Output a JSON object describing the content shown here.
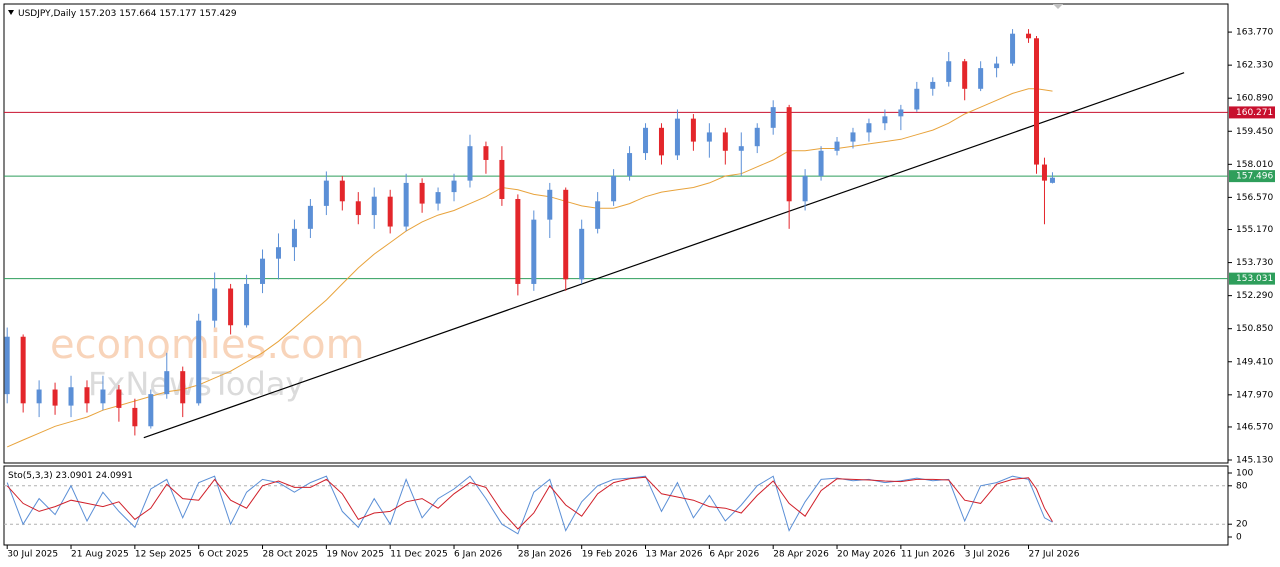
{
  "chart_data": {
    "type": "candlestick",
    "symbol": "USDJPY,Daily",
    "watermarks": [
      "economies.com",
      "FxNewsToday"
    ],
    "up_color": "#5b8fd6",
    "down_color": "#e3262b",
    "x": [
      0,
      1,
      2,
      3,
      4,
      5,
      6,
      7,
      8,
      9,
      10,
      11,
      12,
      13,
      14,
      15,
      16,
      17,
      18,
      19,
      20,
      21,
      22,
      23,
      24,
      25,
      26,
      27,
      28,
      29,
      30,
      31,
      32,
      33,
      34,
      35,
      36,
      37,
      38,
      39,
      40,
      41,
      42,
      43,
      44,
      45,
      46,
      47,
      48,
      49,
      50,
      51,
      52,
      53,
      54,
      55,
      56,
      57,
      58,
      59,
      60,
      61,
      62,
      63,
      64,
      64.5,
      65,
      65.5
    ],
    "open": [
      148.0,
      150.5,
      147.6,
      148.2,
      147.5,
      148.3,
      147.6,
      148.2,
      147.4,
      146.6,
      148.0,
      149.0,
      147.6,
      151.2,
      152.6,
      151.0,
      152.8,
      153.9,
      154.4,
      155.2,
      156.2,
      157.3,
      156.4,
      155.8,
      156.6,
      155.3,
      157.2,
      156.3,
      156.8,
      157.3,
      158.8,
      158.2,
      156.5,
      152.8,
      155.6,
      156.9,
      153.0,
      155.2,
      156.4,
      157.5,
      158.5,
      159.6,
      158.4,
      160.0,
      159.0,
      159.4,
      158.6,
      158.8,
      159.6,
      160.5,
      156.4,
      157.5,
      158.6,
      159.0,
      159.4,
      159.8,
      160.1,
      160.4,
      161.3,
      161.6,
      162.5,
      161.3,
      162.2,
      162.4,
      163.7,
      163.5,
      158.0,
      157.203
    ],
    "high": [
      150.9,
      150.6,
      148.6,
      148.5,
      148.8,
      148.6,
      148.8,
      148.4,
      147.8,
      148.2,
      149.8,
      149.2,
      151.5,
      153.3,
      152.8,
      153.2,
      154.3,
      155.0,
      155.6,
      156.5,
      157.7,
      157.5,
      156.8,
      157.0,
      156.9,
      157.6,
      157.4,
      157.0,
      157.6,
      159.3,
      159.0,
      158.8,
      156.7,
      156.0,
      157.2,
      157.0,
      155.6,
      156.8,
      157.8,
      158.8,
      159.8,
      159.8,
      160.4,
      160.2,
      159.8,
      159.6,
      159.4,
      159.8,
      160.8,
      160.6,
      157.8,
      158.8,
      159.2,
      159.6,
      160.0,
      160.4,
      160.6,
      161.6,
      161.8,
      162.9,
      162.6,
      162.5,
      162.7,
      163.9,
      163.9,
      163.6,
      158.3,
      157.664
    ],
    "low": [
      147.6,
      147.2,
      147.0,
      147.1,
      147.0,
      147.2,
      147.3,
      146.8,
      146.2,
      146.5,
      147.8,
      147.0,
      147.5,
      150.9,
      150.6,
      150.9,
      152.4,
      153.0,
      153.8,
      154.8,
      155.8,
      156.0,
      155.4,
      155.2,
      155.0,
      155.1,
      155.9,
      156.0,
      156.4,
      157.0,
      157.6,
      156.2,
      152.3,
      152.5,
      154.8,
      152.5,
      152.8,
      155.0,
      156.2,
      157.3,
      158.2,
      158.0,
      158.2,
      158.6,
      158.3,
      158.0,
      157.5,
      158.5,
      159.3,
      155.2,
      156.0,
      157.3,
      158.4,
      158.7,
      159.0,
      159.5,
      159.5,
      160.3,
      161.0,
      161.4,
      160.8,
      161.2,
      161.8,
      162.3,
      163.3,
      157.6,
      155.4,
      157.177
    ],
    "close": [
      150.5,
      147.6,
      148.2,
      147.5,
      148.3,
      147.6,
      148.2,
      147.4,
      146.6,
      148.0,
      149.0,
      147.6,
      151.2,
      152.6,
      151.0,
      152.8,
      153.9,
      154.4,
      155.2,
      156.2,
      157.3,
      156.4,
      155.8,
      156.6,
      155.3,
      157.2,
      156.3,
      156.8,
      157.3,
      158.8,
      158.2,
      156.5,
      152.8,
      155.6,
      156.9,
      153.0,
      155.2,
      156.4,
      157.5,
      158.5,
      159.6,
      158.4,
      160.0,
      159.0,
      159.4,
      158.6,
      158.8,
      159.6,
      160.5,
      156.4,
      157.5,
      158.6,
      159.0,
      159.4,
      159.8,
      160.1,
      160.4,
      161.3,
      161.6,
      162.5,
      161.3,
      162.2,
      162.4,
      163.7,
      163.5,
      158.0,
      157.3,
      157.429
    ],
    "ma": {
      "color": "#e8a33c",
      "values": [
        145.7,
        146.0,
        146.3,
        146.6,
        146.8,
        147.0,
        147.3,
        147.5,
        147.7,
        147.9,
        148.1,
        148.2,
        148.4,
        148.7,
        149.0,
        149.4,
        149.8,
        150.3,
        150.9,
        151.5,
        152.1,
        152.8,
        153.5,
        154.1,
        154.6,
        155.1,
        155.5,
        155.8,
        156.0,
        156.3,
        156.6,
        157.0,
        156.9,
        156.7,
        156.6,
        156.4,
        156.2,
        156.1,
        156.1,
        156.3,
        156.6,
        156.8,
        156.9,
        157.0,
        157.2,
        157.5,
        157.6,
        157.9,
        158.2,
        158.6,
        158.6,
        158.7,
        158.7,
        158.8,
        158.9,
        159.0,
        159.1,
        159.3,
        159.5,
        159.8,
        160.2,
        160.5,
        160.8,
        161.1,
        161.3,
        161.3,
        161.25,
        161.2
      ]
    },
    "trendline": {
      "color": "#000000",
      "x": [
        8.56,
        73.75
      ],
      "values": [
        146.1,
        162.0
      ]
    },
    "levels": [
      {
        "value": 160.271,
        "color": "#c8102e"
      },
      {
        "value": 157.496,
        "color": "#2e9e5b"
      },
      {
        "value": 153.031,
        "color": "#2e9e5b"
      }
    ],
    "xlim": [
      -0.2,
      76.5
    ],
    "ylim": [
      145.0,
      164.95
    ],
    "yticks": [
      {
        "value": 145.13,
        "label": "145.130"
      },
      {
        "value": 146.57,
        "label": "146.570"
      },
      {
        "value": 147.97,
        "label": "147.970"
      },
      {
        "value": 149.41,
        "label": "149.410"
      },
      {
        "value": 150.85,
        "label": "150.850"
      },
      {
        "value": 152.29,
        "label": "152.290"
      },
      {
        "value": 153.73,
        "label": "153.730"
      },
      {
        "value": 155.17,
        "label": "155.170"
      },
      {
        "value": 156.57,
        "label": "156.570"
      },
      {
        "value": 158.01,
        "label": "158.010"
      },
      {
        "value": 159.45,
        "label": "159.450"
      },
      {
        "value": 160.89,
        "label": "160.890"
      },
      {
        "value": 162.33,
        "label": "162.330"
      },
      {
        "value": 163.77,
        "label": "163.770"
      }
    ],
    "xticks": [
      {
        "value": 0,
        "label": "30 Jul 2025"
      },
      {
        "value": 4,
        "label": "21 Aug 2025"
      },
      {
        "value": 8,
        "label": "12 Sep 2025"
      },
      {
        "value": 12,
        "label": "6 Oct 2025"
      },
      {
        "value": 16,
        "label": "28 Oct 2025"
      },
      {
        "value": 20,
        "label": "19 Nov 2025"
      },
      {
        "value": 24,
        "label": "11 Dec 2025"
      },
      {
        "value": 28,
        "label": "6 Jan 2026"
      },
      {
        "value": 32,
        "label": "28 Jan 2026"
      },
      {
        "value": 36,
        "label": "19 Feb 2026"
      },
      {
        "value": 40,
        "label": "13 Mar 2026"
      },
      {
        "value": 44,
        "label": "6 Apr 2026"
      },
      {
        "value": 48,
        "label": "28 Apr 2026"
      },
      {
        "value": 52,
        "label": "20 May 2026"
      },
      {
        "value": 56,
        "label": "11 Jun 2026"
      },
      {
        "value": 60,
        "label": "3 Jul 2026"
      },
      {
        "value": 64,
        "label": "27 Jul 2026"
      }
    ],
    "oscillator": {
      "label": "Sto(5,3,3)",
      "ylim": [
        0,
        100
      ],
      "yticks": [
        100,
        80,
        20,
        0
      ],
      "series": [
        {
          "color": "#5b8fd6",
          "values": [
            85,
            20,
            60,
            35,
            80,
            25,
            70,
            40,
            15,
            75,
            90,
            30,
            85,
            95,
            20,
            70,
            90,
            85,
            70,
            85,
            95,
            40,
            15,
            60,
            20,
            90,
            30,
            60,
            75,
            95,
            60,
            20,
            5,
            70,
            90,
            10,
            55,
            80,
            90,
            92,
            95,
            40,
            85,
            30,
            65,
            25,
            50,
            80,
            95,
            10,
            55,
            90,
            92,
            88,
            90,
            85,
            88,
            92,
            88,
            90,
            25,
            80,
            85,
            95,
            90,
            60,
            30,
            23.0901
          ]
        },
        {
          "color": "#d0202a",
          "values": [
            80,
            52.5,
            40,
            47.5,
            57.5,
            52.5,
            47.5,
            55,
            27.5,
            45,
            82.5,
            60,
            57.5,
            90,
            57.5,
            45,
            80,
            87.5,
            77.5,
            77.5,
            90,
            67.5,
            27.5,
            37.5,
            40,
            55,
            60,
            45,
            67.5,
            85,
            77.5,
            40,
            12.5,
            37.5,
            80,
            50,
            32.5,
            67.5,
            85,
            91,
            93.5,
            67.5,
            62.5,
            57.5,
            47.5,
            45,
            37.5,
            65,
            87.5,
            52.5,
            32.5,
            72.5,
            91,
            90,
            89,
            87.5,
            86.5,
            90,
            90,
            89,
            57.5,
            52.5,
            82.5,
            90,
            92.5,
            75,
            45,
            24.0991
          ]
        }
      ]
    }
  }
}
